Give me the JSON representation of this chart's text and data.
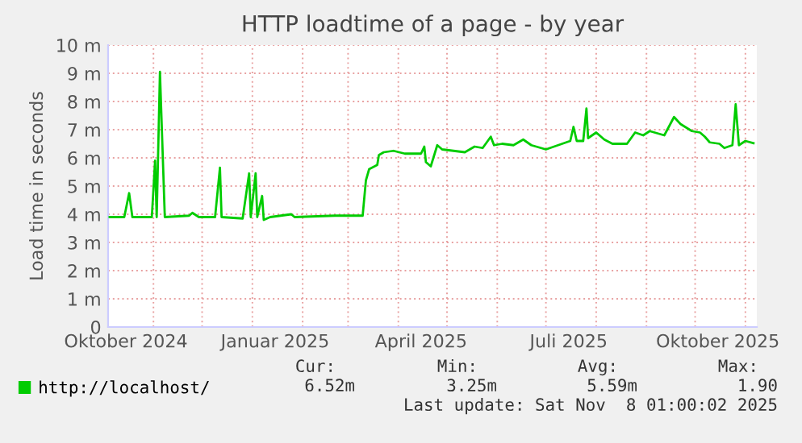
{
  "chart_data": {
    "type": "line",
    "title": "HTTP loadtime of a page - by year",
    "ylabel": "Load time in seconds",
    "x": [
      "2024-10-05",
      "2024-10-14",
      "2024-10-17",
      "2024-10-19",
      "2024-10-31",
      "2024-11-02",
      "2024-11-03",
      "2024-11-05",
      "2024-11-08",
      "2024-11-23",
      "2024-11-25",
      "2024-11-29",
      "2024-12-09",
      "2024-12-12",
      "2024-12-13",
      "2024-12-26",
      "2024-12-30",
      "2024-12-31",
      "2025-01-03",
      "2025-01-04",
      "2025-01-07",
      "2025-01-08",
      "2025-01-12",
      "2025-01-25",
      "2025-01-27",
      "2025-02-21",
      "2025-03-10",
      "2025-03-12",
      "2025-03-14",
      "2025-03-19",
      "2025-03-20",
      "2025-03-23",
      "2025-03-29",
      "2025-04-05",
      "2025-04-15",
      "2025-04-17",
      "2025-04-18",
      "2025-04-21",
      "2025-04-25",
      "2025-04-28",
      "2025-05-05",
      "2025-05-12",
      "2025-05-18",
      "2025-05-23",
      "2025-05-28",
      "2025-05-30",
      "2025-06-04",
      "2025-06-11",
      "2025-06-17",
      "2025-06-22",
      "2025-07-01",
      "2025-07-11",
      "2025-07-16",
      "2025-07-18",
      "2025-07-20",
      "2025-07-24",
      "2025-07-26",
      "2025-07-27",
      "2025-08-01",
      "2025-08-06",
      "2025-08-11",
      "2025-08-20",
      "2025-08-25",
      "2025-08-30",
      "2025-09-03",
      "2025-09-12",
      "2025-09-18",
      "2025-09-22",
      "2025-09-29",
      "2025-10-04",
      "2025-10-07",
      "2025-10-10",
      "2025-10-16",
      "2025-10-19",
      "2025-10-24",
      "2025-10-26",
      "2025-10-28",
      "2025-11-01",
      "2025-11-06"
    ],
    "series": [
      {
        "name": "http://localhost/",
        "color": "#00cc00",
        "values": [
          3.9,
          3.9,
          4.75,
          3.9,
          3.9,
          5.9,
          3.9,
          9.05,
          3.9,
          3.95,
          4.05,
          3.9,
          3.9,
          5.65,
          3.9,
          3.85,
          5.45,
          3.9,
          5.45,
          3.9,
          4.65,
          3.8,
          3.9,
          4.0,
          3.9,
          3.95,
          3.95,
          5.2,
          5.6,
          5.75,
          6.1,
          6.2,
          6.25,
          6.15,
          6.15,
          6.4,
          5.85,
          5.7,
          6.45,
          6.3,
          6.25,
          6.2,
          6.4,
          6.35,
          6.75,
          6.45,
          6.5,
          6.45,
          6.65,
          6.45,
          6.3,
          6.5,
          6.6,
          7.1,
          6.6,
          6.6,
          7.75,
          6.7,
          6.9,
          6.65,
          6.5,
          6.5,
          6.9,
          6.8,
          6.95,
          6.8,
          7.45,
          7.2,
          6.95,
          6.9,
          6.75,
          6.55,
          6.5,
          6.35,
          6.45,
          7.9,
          6.45,
          6.6,
          6.52
        ]
      }
    ],
    "xlim": [
      "2024-10-04T01:00",
      "2025-11-08T01:00"
    ],
    "xticks": [
      {
        "value": "2024-10-15",
        "label": "Oktober 2024"
      },
      {
        "value": "2025-01-15",
        "label": "Januar 2025"
      },
      {
        "value": "2025-04-15",
        "label": "April 2025"
      },
      {
        "value": "2025-07-15",
        "label": "Juli 2025"
      },
      {
        "value": "2025-10-15",
        "label": "Oktober 2025"
      },
      {
        "value": "2024-11-01",
        "label": null
      },
      {
        "value": "2024-12-01",
        "label": null
      },
      {
        "value": "2025-01-01",
        "label": null
      },
      {
        "value": "2025-02-01",
        "label": null
      },
      {
        "value": "2025-03-01",
        "label": null
      },
      {
        "value": "2025-04-01",
        "label": null
      },
      {
        "value": "2025-05-01",
        "label": null
      },
      {
        "value": "2025-06-01",
        "label": null
      },
      {
        "value": "2025-07-01",
        "label": null
      },
      {
        "value": "2025-08-01",
        "label": null
      },
      {
        "value": "2025-09-01",
        "label": null
      },
      {
        "value": "2025-10-01",
        "label": null
      },
      {
        "value": "2025-11-01",
        "label": null
      }
    ],
    "ylim": [
      0,
      10
    ],
    "yticks": [
      0,
      {
        "value": 1,
        "label": "1 m"
      },
      {
        "value": 2,
        "label": "2 m"
      },
      {
        "value": 3,
        "label": "3 m"
      },
      {
        "value": 4,
        "label": "4 m"
      },
      {
        "value": 5,
        "label": "5 m"
      },
      {
        "value": 6,
        "label": "6 m"
      },
      {
        "value": 7,
        "label": "7 m"
      },
      {
        "value": 8,
        "label": "8 m"
      },
      {
        "value": 9,
        "label": "9 m"
      },
      {
        "value": 10,
        "label": "10 m"
      }
    ],
    "grid": true,
    "legend": "bottom",
    "marker": "none",
    "line_style": "solid",
    "annotations": [
      "Cur:",
      "Min:",
      "Avg:",
      "Max:",
      "6.52m",
      "3.25m",
      "5.59m",
      "1.90",
      "Last update: Sat Nov  8 01:00:02 2025"
    ]
  }
}
